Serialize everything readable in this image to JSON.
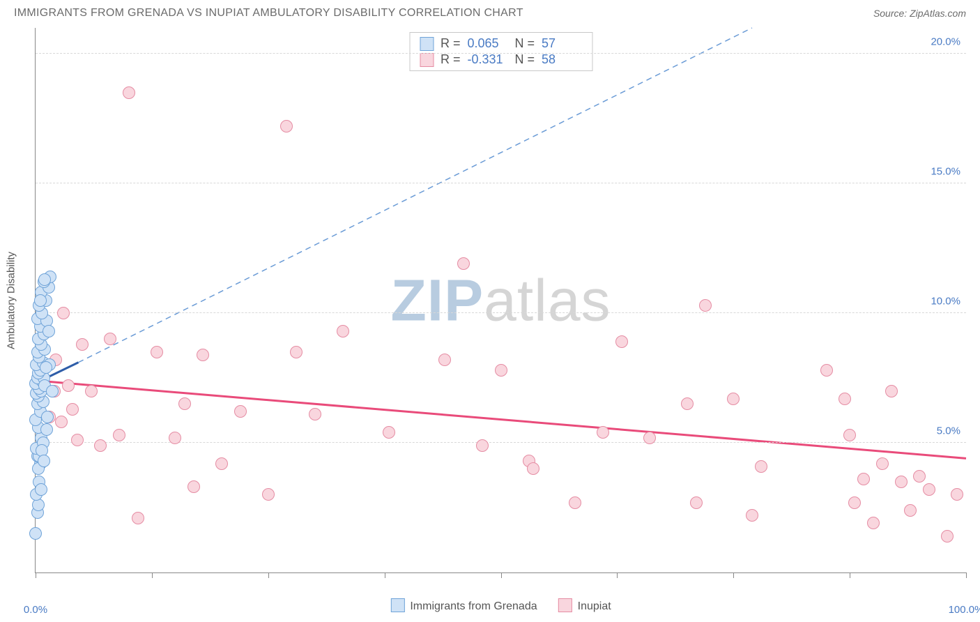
{
  "header": {
    "title": "IMMIGRANTS FROM GRENADA VS INUPIAT AMBULATORY DISABILITY CORRELATION CHART",
    "source": "Source: ZipAtlas.com"
  },
  "watermark": {
    "text_bold": "ZIP",
    "text_light": "atlas",
    "color_bold": "#b8cce0",
    "color_light": "#d5d5d5"
  },
  "chart": {
    "type": "scatter",
    "background_color": "#ffffff",
    "grid_color": "#d8d8d8",
    "axis_color": "#888888",
    "label_color": "#555555",
    "tick_color": "#4a7bc4",
    "xlim": [
      0,
      100
    ],
    "ylim": [
      0,
      21
    ],
    "x_ticks_pct": [
      0,
      12.5,
      25,
      37.5,
      50,
      62.5,
      75,
      87.5,
      100
    ],
    "x_tick_labels": [
      {
        "x": 0,
        "label": "0.0%"
      },
      {
        "x": 100,
        "label": "100.0%"
      }
    ],
    "y_grid": [
      5.0,
      10.0,
      15.0,
      20.0
    ],
    "y_tick_labels": [
      {
        "y": 5.0,
        "label": "5.0%"
      },
      {
        "y": 10.0,
        "label": "10.0%"
      },
      {
        "y": 15.0,
        "label": "15.0%"
      },
      {
        "y": 20.0,
        "label": "20.0%"
      }
    ],
    "ylabel": "Ambulatory Disability",
    "marker_size": 18,
    "series_a": {
      "name": "Immigrants from Grenada",
      "fill": "#cfe2f6",
      "stroke": "#6fa3d8",
      "R": "0.065",
      "N": "57",
      "points": [
        [
          0.0,
          1.5
        ],
        [
          0.2,
          2.3
        ],
        [
          0.3,
          2.6
        ],
        [
          0.1,
          3.0
        ],
        [
          0.5,
          4.2
        ],
        [
          0.2,
          4.5
        ],
        [
          0.4,
          4.5
        ],
        [
          0.1,
          4.8
        ],
        [
          0.6,
          5.2
        ],
        [
          0.3,
          5.6
        ],
        [
          0.0,
          5.9
        ],
        [
          0.5,
          6.2
        ],
        [
          0.2,
          6.5
        ],
        [
          0.8,
          6.6
        ],
        [
          0.3,
          6.8
        ],
        [
          0.1,
          6.9
        ],
        [
          0.6,
          7.0
        ],
        [
          0.4,
          7.1
        ],
        [
          0.0,
          7.3
        ],
        [
          0.7,
          7.4
        ],
        [
          0.2,
          7.5
        ],
        [
          0.9,
          7.5
        ],
        [
          0.3,
          7.7
        ],
        [
          0.5,
          7.8
        ],
        [
          0.1,
          8.0
        ],
        [
          0.8,
          8.1
        ],
        [
          0.4,
          8.3
        ],
        [
          0.2,
          8.5
        ],
        [
          1.0,
          8.6
        ],
        [
          0.6,
          8.8
        ],
        [
          0.3,
          9.0
        ],
        [
          0.9,
          9.2
        ],
        [
          0.5,
          9.5
        ],
        [
          0.2,
          9.8
        ],
        [
          1.2,
          9.7
        ],
        [
          0.7,
          10.0
        ],
        [
          0.4,
          10.3
        ],
        [
          1.1,
          10.5
        ],
        [
          0.6,
          10.8
        ],
        [
          1.4,
          11.0
        ],
        [
          0.9,
          11.2
        ],
        [
          1.6,
          11.4
        ],
        [
          0.3,
          4.0
        ],
        [
          0.8,
          5.0
        ],
        [
          1.3,
          6.0
        ],
        [
          1.0,
          7.2
        ],
        [
          1.5,
          8.0
        ],
        [
          0.7,
          4.7
        ],
        [
          1.2,
          5.5
        ],
        [
          0.4,
          3.5
        ],
        [
          0.9,
          4.3
        ],
        [
          1.1,
          7.9
        ],
        [
          0.6,
          3.2
        ],
        [
          1.4,
          9.3
        ],
        [
          0.5,
          10.5
        ],
        [
          1.0,
          11.3
        ],
        [
          1.8,
          7.0
        ]
      ],
      "trend": {
        "x1": 0,
        "y1": 7.3,
        "x2": 4.6,
        "y2": 8.1,
        "color": "#2e5da8",
        "width": 3,
        "dash": ""
      },
      "trend_ext": {
        "x1": 4.6,
        "y1": 8.1,
        "x2": 77,
        "y2": 21,
        "color": "#6a9bd6",
        "width": 1.5,
        "dash": "8 6"
      }
    },
    "series_b": {
      "name": "Inupiat",
      "fill": "#f9d6de",
      "stroke": "#e58ca3",
      "R": "-0.331",
      "N": "58",
      "points": [
        [
          1.5,
          6.0
        ],
        [
          2.0,
          7.0
        ],
        [
          2.2,
          8.2
        ],
        [
          2.8,
          5.8
        ],
        [
          3.0,
          10.0
        ],
        [
          3.5,
          7.2
        ],
        [
          4.0,
          6.3
        ],
        [
          4.5,
          5.1
        ],
        [
          5.0,
          8.8
        ],
        [
          6.0,
          7.0
        ],
        [
          7.0,
          4.9
        ],
        [
          8.0,
          9.0
        ],
        [
          9.0,
          5.3
        ],
        [
          10.0,
          18.5
        ],
        [
          11.0,
          2.1
        ],
        [
          13.0,
          8.5
        ],
        [
          15.0,
          5.2
        ],
        [
          16.0,
          6.5
        ],
        [
          17.0,
          3.3
        ],
        [
          18.0,
          8.4
        ],
        [
          20.0,
          4.2
        ],
        [
          22.0,
          6.2
        ],
        [
          25.0,
          3.0
        ],
        [
          27.0,
          17.2
        ],
        [
          28.0,
          8.5
        ],
        [
          30.0,
          6.1
        ],
        [
          33.0,
          9.3
        ],
        [
          38.0,
          5.4
        ],
        [
          44.0,
          8.2
        ],
        [
          46.0,
          11.9
        ],
        [
          48.0,
          4.9
        ],
        [
          50.0,
          7.8
        ],
        [
          53.0,
          4.3
        ],
        [
          53.5,
          4.0
        ],
        [
          58.0,
          2.7
        ],
        [
          61.0,
          5.4
        ],
        [
          63.0,
          8.9
        ],
        [
          66.0,
          5.2
        ],
        [
          70.0,
          6.5
        ],
        [
          71.0,
          2.7
        ],
        [
          72.0,
          10.3
        ],
        [
          75.0,
          6.7
        ],
        [
          77.0,
          2.2
        ],
        [
          78.0,
          4.1
        ],
        [
          85.0,
          7.8
        ],
        [
          87.0,
          6.7
        ],
        [
          87.5,
          5.3
        ],
        [
          88.0,
          2.7
        ],
        [
          89.0,
          3.6
        ],
        [
          90.0,
          1.9
        ],
        [
          91.0,
          4.2
        ],
        [
          92.0,
          7.0
        ],
        [
          93.0,
          3.5
        ],
        [
          94.0,
          2.4
        ],
        [
          95.0,
          3.7
        ],
        [
          96.0,
          3.2
        ],
        [
          98.0,
          1.4
        ],
        [
          99.0,
          3.0
        ]
      ],
      "trend": {
        "x1": 0,
        "y1": 7.4,
        "x2": 100,
        "y2": 4.4,
        "color": "#e94b7a",
        "width": 3,
        "dash": ""
      }
    }
  },
  "legend_bottom": {
    "items": [
      {
        "swatch_fill": "#cfe2f6",
        "swatch_stroke": "#6fa3d8",
        "label": "Immigrants from Grenada"
      },
      {
        "swatch_fill": "#f9d6de",
        "swatch_stroke": "#e58ca3",
        "label": "Inupiat"
      }
    ]
  }
}
